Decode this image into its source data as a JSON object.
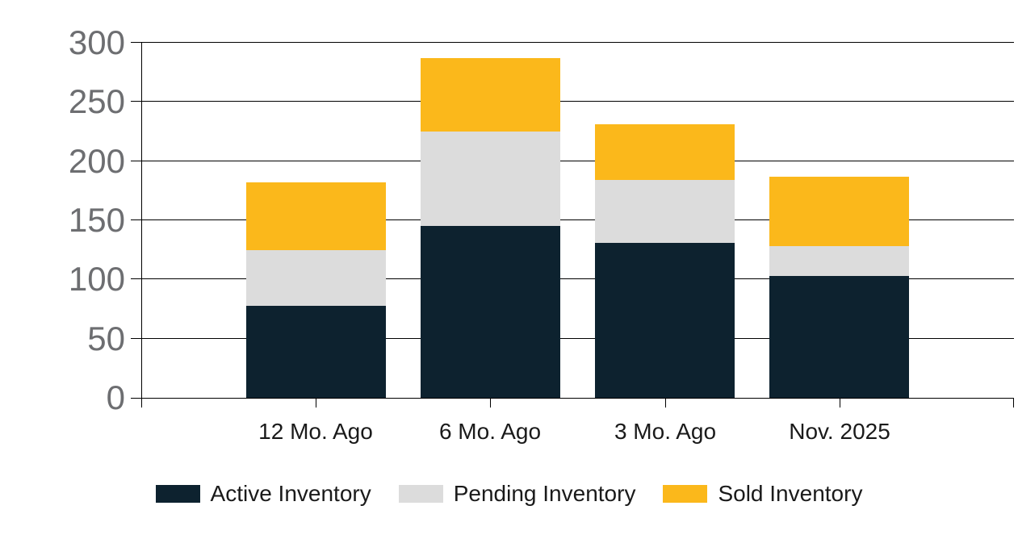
{
  "chart_data": {
    "type": "bar",
    "stacked": true,
    "title": "",
    "categories": [
      "12 Mo. Ago",
      "6 Mo. Ago",
      "3 Mo. Ago",
      "Nov. 2025"
    ],
    "series": [
      {
        "name": "Active Inventory",
        "color": "#0d222f",
        "values": [
          78,
          145,
          131,
          103
        ]
      },
      {
        "name": "Pending Inventory",
        "color": "#dcdcdc",
        "values": [
          47,
          80,
          53,
          25
        ]
      },
      {
        "name": "Sold Inventory",
        "color": "#fbb81b",
        "values": [
          57,
          62,
          47,
          59
        ]
      }
    ],
    "ylim": [
      0,
      300
    ],
    "yticks": [
      0,
      50,
      100,
      150,
      200,
      250,
      300
    ],
    "grid": true,
    "legend_position": "bottom",
    "colors": {
      "axis": "#000000",
      "y_tick_label": "#6d6e71",
      "x_tick_label": "#1a1a1a",
      "legend_text": "#1a1a1a",
      "background": "#ffffff"
    }
  }
}
